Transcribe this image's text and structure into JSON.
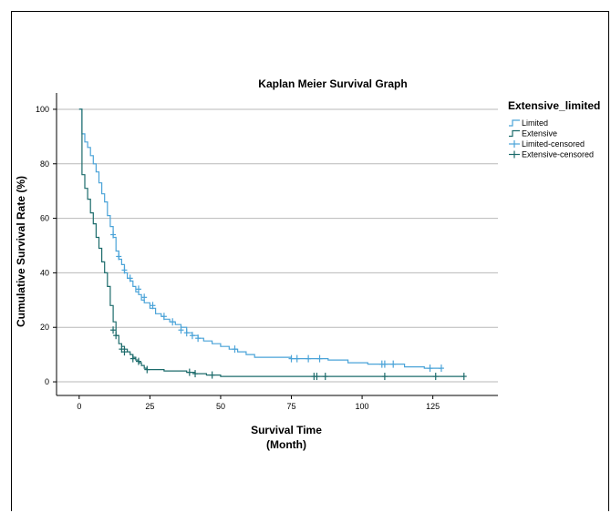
{
  "chart_data": {
    "type": "line",
    "title": "Kaplan Meier Survival Graph",
    "xlabel": "Survival Time",
    "xlabel_unit": "(Month)",
    "ylabel": "Cumulative Survival Rate (%)",
    "xlim": [
      -8,
      148
    ],
    "ylim": [
      -5,
      106
    ],
    "xticks": [
      0,
      25,
      50,
      75,
      100,
      125
    ],
    "yticks": [
      0,
      20,
      40,
      60,
      80,
      100
    ],
    "grid": "horizontal",
    "legend": {
      "title": "Extensive_limited",
      "placement": "right",
      "entries": [
        "Limited",
        "Extensive",
        "Limited-censored",
        "Extensive-censored"
      ]
    },
    "colors": {
      "limited": "#4aa3d8",
      "extensive": "#1c6b6b"
    },
    "series": [
      {
        "name": "Limited",
        "step": [
          [
            0,
            100
          ],
          [
            1,
            91
          ],
          [
            2,
            88
          ],
          [
            3,
            86
          ],
          [
            4,
            83
          ],
          [
            5,
            80
          ],
          [
            6,
            77
          ],
          [
            7,
            73
          ],
          [
            8,
            69
          ],
          [
            9,
            66
          ],
          [
            10,
            61
          ],
          [
            11,
            57
          ],
          [
            12,
            53
          ],
          [
            13,
            48
          ],
          [
            14,
            45
          ],
          [
            15,
            43
          ],
          [
            16,
            40
          ],
          [
            17,
            38
          ],
          [
            18,
            37
          ],
          [
            19,
            35
          ],
          [
            20,
            33
          ],
          [
            21,
            32
          ],
          [
            22,
            30
          ],
          [
            23,
            29
          ],
          [
            25,
            27
          ],
          [
            27,
            25
          ],
          [
            29,
            24
          ],
          [
            30,
            23
          ],
          [
            32,
            22
          ],
          [
            34,
            21
          ],
          [
            36,
            20
          ],
          [
            38,
            18
          ],
          [
            40,
            17
          ],
          [
            42,
            16
          ],
          [
            44,
            15
          ],
          [
            47,
            14
          ],
          [
            50,
            13
          ],
          [
            53,
            12
          ],
          [
            56,
            11
          ],
          [
            59,
            10
          ],
          [
            62,
            9
          ],
          [
            75,
            8.5
          ],
          [
            88,
            8
          ],
          [
            95,
            7
          ],
          [
            102,
            6.5
          ],
          [
            115,
            5.5
          ],
          [
            122,
            5
          ],
          [
            128,
            5
          ]
        ],
        "censored": [
          [
            12,
            54
          ],
          [
            14,
            46
          ],
          [
            16,
            41
          ],
          [
            18,
            38
          ],
          [
            21,
            34
          ],
          [
            23,
            31
          ],
          [
            26,
            28
          ],
          [
            30,
            24
          ],
          [
            33,
            22
          ],
          [
            36,
            19
          ],
          [
            38,
            18
          ],
          [
            40,
            17
          ],
          [
            42,
            16
          ],
          [
            55,
            12
          ],
          [
            75,
            8.5
          ],
          [
            77,
            8.5
          ],
          [
            81,
            8.5
          ],
          [
            85,
            8.5
          ],
          [
            107,
            6.5
          ],
          [
            108,
            6.5
          ],
          [
            111,
            6.5
          ],
          [
            124,
            5
          ],
          [
            128,
            5
          ]
        ]
      },
      {
        "name": "Extensive",
        "step": [
          [
            0,
            100
          ],
          [
            1,
            76
          ],
          [
            2,
            71
          ],
          [
            3,
            67
          ],
          [
            4,
            62
          ],
          [
            5,
            58
          ],
          [
            6,
            53
          ],
          [
            7,
            49
          ],
          [
            8,
            44
          ],
          [
            9,
            40
          ],
          [
            10,
            35
          ],
          [
            11,
            28
          ],
          [
            12,
            22
          ],
          [
            13,
            17
          ],
          [
            14,
            14
          ],
          [
            15,
            13
          ],
          [
            16,
            12
          ],
          [
            17,
            11
          ],
          [
            18,
            10
          ],
          [
            19,
            9
          ],
          [
            20,
            8
          ],
          [
            21,
            7
          ],
          [
            22,
            6
          ],
          [
            23,
            5
          ],
          [
            24,
            4.5
          ],
          [
            30,
            4
          ],
          [
            38,
            3.5
          ],
          [
            41,
            3
          ],
          [
            45,
            2.5
          ],
          [
            50,
            2
          ],
          [
            136,
            2
          ]
        ],
        "censored": [
          [
            12,
            19
          ],
          [
            13,
            17
          ],
          [
            15,
            12
          ],
          [
            16,
            11
          ],
          [
            19,
            8.5
          ],
          [
            21,
            7.5
          ],
          [
            24,
            4.5
          ],
          [
            39,
            3.5
          ],
          [
            41,
            3
          ],
          [
            47,
            2.5
          ],
          [
            83,
            2
          ],
          [
            84,
            2
          ],
          [
            87,
            2
          ],
          [
            108,
            2
          ],
          [
            126,
            2
          ],
          [
            136,
            2
          ]
        ]
      }
    ]
  }
}
